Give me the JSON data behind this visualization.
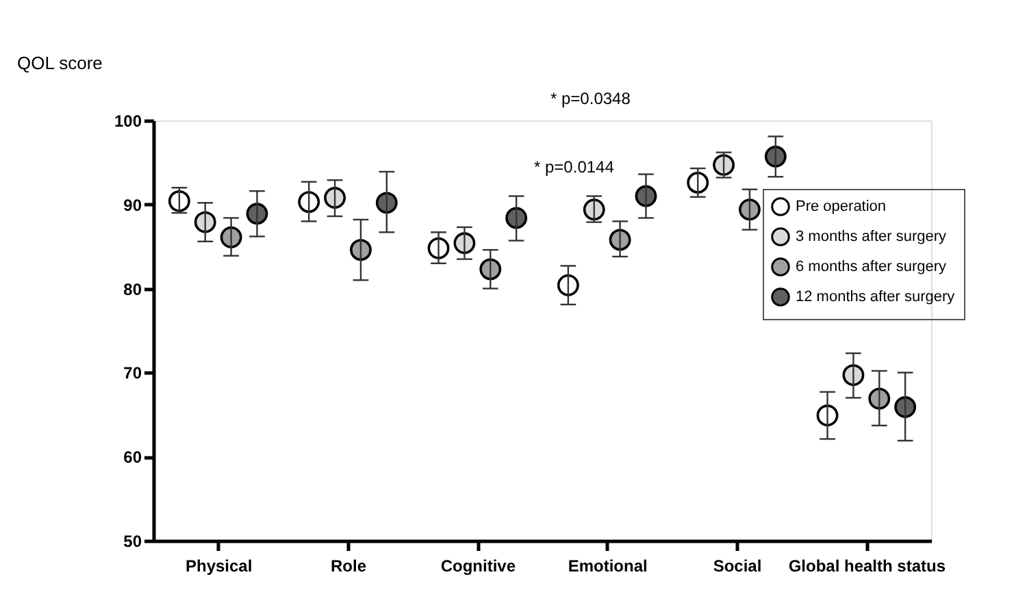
{
  "chart_data": {
    "type": "scatter",
    "ylabel": "QOL score",
    "categories": [
      "Physical",
      "Role",
      "Cognitive",
      "Emotional",
      "Social",
      "Global health status"
    ],
    "series": [
      {
        "name": "Pre operation",
        "color": "#ffffff",
        "values": [
          90.4,
          90.3,
          84.8,
          80.4,
          92.6,
          64.9
        ],
        "errors": [
          [
            89.0,
            92.0
          ],
          [
            88.0,
            92.7
          ],
          [
            83.0,
            86.7
          ],
          [
            78.1,
            82.7
          ],
          [
            90.9,
            94.3
          ],
          [
            62.1,
            67.7
          ]
        ]
      },
      {
        "name": "3 months after surgery",
        "color": "#d9d9d9",
        "values": [
          87.9,
          90.8,
          85.4,
          89.4,
          94.7,
          69.7
        ],
        "errors": [
          [
            85.6,
            90.2
          ],
          [
            88.6,
            92.9
          ],
          [
            83.5,
            87.3
          ],
          [
            87.9,
            91.0
          ],
          [
            93.2,
            96.2
          ],
          [
            67.0,
            72.3
          ]
        ]
      },
      {
        "name": "6 months after surgery",
        "color": "#a0a0a0",
        "values": [
          86.1,
          84.6,
          82.3,
          85.8,
          89.4,
          66.9
        ],
        "errors": [
          [
            83.9,
            88.4
          ],
          [
            81.0,
            88.2
          ],
          [
            80.0,
            84.6
          ],
          [
            83.8,
            88.0
          ],
          [
            87.0,
            91.8
          ],
          [
            63.7,
            70.2
          ]
        ]
      },
      {
        "name": "12 months after surgery",
        "color": "#606060",
        "values": [
          88.9,
          90.2,
          88.4,
          91.0,
          95.7,
          65.9
        ],
        "errors": [
          [
            86.2,
            91.6
          ],
          [
            86.7,
            93.9
          ],
          [
            85.7,
            91.0
          ],
          [
            88.4,
            93.6
          ],
          [
            93.3,
            98.1
          ],
          [
            61.9,
            70.0
          ]
        ]
      }
    ],
    "ylim": [
      50,
      100
    ],
    "yticks": [
      50,
      60,
      70,
      80,
      90,
      100
    ],
    "marker": "circle",
    "grid": false,
    "legend": "top right",
    "annotations": [
      "* p=0.0348",
      "* p=0.0144"
    ]
  }
}
